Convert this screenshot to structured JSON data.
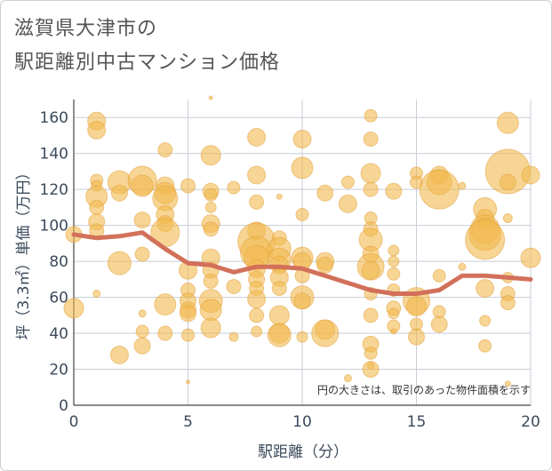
{
  "chart_data": {
    "type": "scatter",
    "title_line1": "滋賀県大津市の",
    "title_line2": "駅距離別中古マンション価格",
    "xlabel": "駅距離（分）",
    "ylabel": "坪（3.3㎡）単価（万円）",
    "xlim": [
      0,
      20
    ],
    "ylim": [
      0,
      170
    ],
    "x_ticks": [
      0,
      5,
      10,
      15,
      20
    ],
    "y_ticks": [
      0,
      20,
      40,
      60,
      80,
      100,
      120,
      140,
      160
    ],
    "grid": true,
    "annotation": "円の大きさは、取引のあった物件面積を示す",
    "colors": {
      "bubble": "#f2b94e",
      "line": "#d2705a",
      "grid": "#c8cdd8"
    },
    "trend_line": {
      "x": [
        0,
        1,
        2,
        3,
        4,
        5,
        6,
        7,
        8,
        9,
        10,
        11,
        12,
        13,
        14,
        15,
        16,
        17,
        18,
        19,
        20
      ],
      "y": [
        95,
        93,
        94,
        96,
        87,
        79,
        78,
        74,
        77,
        77,
        76,
        72,
        68,
        64,
        62,
        62,
        64,
        72,
        72,
        71,
        70
      ]
    },
    "points": [
      {
        "x": 0,
        "y": 54,
        "s": 11
      },
      {
        "x": 0,
        "y": 95,
        "s": 9
      },
      {
        "x": 1,
        "y": 158,
        "s": 10
      },
      {
        "x": 1,
        "y": 153,
        "s": 10
      },
      {
        "x": 1,
        "y": 125,
        "s": 7
      },
      {
        "x": 1,
        "y": 122,
        "s": 6
      },
      {
        "x": 1,
        "y": 116,
        "s": 12
      },
      {
        "x": 1,
        "y": 110,
        "s": 8
      },
      {
        "x": 1,
        "y": 102,
        "s": 9
      },
      {
        "x": 1,
        "y": 97,
        "s": 8
      },
      {
        "x": 1,
        "y": 62,
        "s": 4
      },
      {
        "x": 2,
        "y": 124,
        "s": 13
      },
      {
        "x": 2,
        "y": 118,
        "s": 9
      },
      {
        "x": 2,
        "y": 79,
        "s": 13
      },
      {
        "x": 2,
        "y": 28,
        "s": 10
      },
      {
        "x": 3,
        "y": 125,
        "s": 16
      },
      {
        "x": 3,
        "y": 122,
        "s": 12
      },
      {
        "x": 3,
        "y": 103,
        "s": 9
      },
      {
        "x": 3,
        "y": 84,
        "s": 8
      },
      {
        "x": 3,
        "y": 51,
        "s": 4
      },
      {
        "x": 3,
        "y": 41,
        "s": 7
      },
      {
        "x": 3,
        "y": 33,
        "s": 9
      },
      {
        "x": 4,
        "y": 142,
        "s": 8
      },
      {
        "x": 4,
        "y": 122,
        "s": 10
      },
      {
        "x": 4,
        "y": 118,
        "s": 12
      },
      {
        "x": 4,
        "y": 115,
        "s": 14
      },
      {
        "x": 4,
        "y": 106,
        "s": 10
      },
      {
        "x": 4,
        "y": 101,
        "s": 9
      },
      {
        "x": 4,
        "y": 96,
        "s": 16
      },
      {
        "x": 4,
        "y": 56,
        "s": 12
      },
      {
        "x": 4,
        "y": 40,
        "s": 8
      },
      {
        "x": 5,
        "y": 122,
        "s": 8
      },
      {
        "x": 5,
        "y": 75,
        "s": 10
      },
      {
        "x": 5,
        "y": 64,
        "s": 8
      },
      {
        "x": 5,
        "y": 58,
        "s": 9
      },
      {
        "x": 5,
        "y": 53,
        "s": 9
      },
      {
        "x": 5,
        "y": 51,
        "s": 9
      },
      {
        "x": 5,
        "y": 39,
        "s": 7
      },
      {
        "x": 5,
        "y": 13,
        "s": 2
      },
      {
        "x": 6,
        "y": 171,
        "s": 2
      },
      {
        "x": 6,
        "y": 139,
        "s": 11
      },
      {
        "x": 6,
        "y": 119,
        "s": 9
      },
      {
        "x": 6,
        "y": 117,
        "s": 7
      },
      {
        "x": 6,
        "y": 110,
        "s": 6
      },
      {
        "x": 6,
        "y": 101,
        "s": 10
      },
      {
        "x": 6,
        "y": 98,
        "s": 8
      },
      {
        "x": 6,
        "y": 82,
        "s": 10
      },
      {
        "x": 6,
        "y": 75,
        "s": 9
      },
      {
        "x": 6,
        "y": 69,
        "s": 8
      },
      {
        "x": 6,
        "y": 58,
        "s": 13
      },
      {
        "x": 6,
        "y": 53,
        "s": 12
      },
      {
        "x": 6,
        "y": 43,
        "s": 11
      },
      {
        "x": 7,
        "y": 121,
        "s": 7
      },
      {
        "x": 7,
        "y": 66,
        "s": 8
      },
      {
        "x": 7,
        "y": 38,
        "s": 5
      },
      {
        "x": 8,
        "y": 149,
        "s": 10
      },
      {
        "x": 8,
        "y": 128,
        "s": 10
      },
      {
        "x": 8,
        "y": 113,
        "s": 8
      },
      {
        "x": 8,
        "y": 97,
        "s": 10
      },
      {
        "x": 8,
        "y": 91,
        "s": 21
      },
      {
        "x": 8,
        "y": 85,
        "s": 18
      },
      {
        "x": 8,
        "y": 82,
        "s": 14
      },
      {
        "x": 8,
        "y": 76,
        "s": 10
      },
      {
        "x": 8,
        "y": 70,
        "s": 9
      },
      {
        "x": 8,
        "y": 65,
        "s": 8
      },
      {
        "x": 8,
        "y": 59,
        "s": 10
      },
      {
        "x": 8,
        "y": 50,
        "s": 8
      },
      {
        "x": 8,
        "y": 41,
        "s": 6
      },
      {
        "x": 9,
        "y": 116,
        "s": 3
      },
      {
        "x": 9,
        "y": 93,
        "s": 8
      },
      {
        "x": 9,
        "y": 87,
        "s": 13
      },
      {
        "x": 9,
        "y": 81,
        "s": 13
      },
      {
        "x": 9,
        "y": 78,
        "s": 10
      },
      {
        "x": 9,
        "y": 71,
        "s": 10
      },
      {
        "x": 9,
        "y": 65,
        "s": 8
      },
      {
        "x": 9,
        "y": 50,
        "s": 11
      },
      {
        "x": 9,
        "y": 40,
        "s": 11
      },
      {
        "x": 9,
        "y": 39,
        "s": 13
      },
      {
        "x": 10,
        "y": 148,
        "s": 10
      },
      {
        "x": 10,
        "y": 132,
        "s": 12
      },
      {
        "x": 10,
        "y": 106,
        "s": 7
      },
      {
        "x": 10,
        "y": 82,
        "s": 12
      },
      {
        "x": 10,
        "y": 80,
        "s": 10
      },
      {
        "x": 10,
        "y": 72,
        "s": 8
      },
      {
        "x": 10,
        "y": 60,
        "s": 13
      },
      {
        "x": 10,
        "y": 58,
        "s": 9
      },
      {
        "x": 10,
        "y": 38,
        "s": 6
      },
      {
        "x": 11,
        "y": 118,
        "s": 9
      },
      {
        "x": 11,
        "y": 80,
        "s": 10
      },
      {
        "x": 11,
        "y": 78,
        "s": 9
      },
      {
        "x": 11,
        "y": 42,
        "s": 11
      },
      {
        "x": 11,
        "y": 40,
        "s": 15
      },
      {
        "x": 12,
        "y": 124,
        "s": 7
      },
      {
        "x": 12,
        "y": 112,
        "s": 10
      },
      {
        "x": 12,
        "y": 15,
        "s": 4
      },
      {
        "x": 13,
        "y": 161,
        "s": 7
      },
      {
        "x": 13,
        "y": 148,
        "s": 8
      },
      {
        "x": 13,
        "y": 129,
        "s": 11
      },
      {
        "x": 13,
        "y": 120,
        "s": 8
      },
      {
        "x": 13,
        "y": 104,
        "s": 7
      },
      {
        "x": 13,
        "y": 98,
        "s": 8
      },
      {
        "x": 13,
        "y": 92,
        "s": 13
      },
      {
        "x": 13,
        "y": 84,
        "s": 9
      },
      {
        "x": 13,
        "y": 77,
        "s": 15
      },
      {
        "x": 13,
        "y": 75,
        "s": 10
      },
      {
        "x": 13,
        "y": 62,
        "s": 7
      },
      {
        "x": 13,
        "y": 50,
        "s": 8
      },
      {
        "x": 13,
        "y": 34,
        "s": 9
      },
      {
        "x": 13,
        "y": 29,
        "s": 7
      },
      {
        "x": 13,
        "y": 22,
        "s": 4
      },
      {
        "x": 13,
        "y": 20,
        "s": 9
      },
      {
        "x": 14,
        "y": 119,
        "s": 9
      },
      {
        "x": 14,
        "y": 86,
        "s": 6
      },
      {
        "x": 14,
        "y": 80,
        "s": 6
      },
      {
        "x": 14,
        "y": 73,
        "s": 7
      },
      {
        "x": 14,
        "y": 64,
        "s": 7
      },
      {
        "x": 14,
        "y": 54,
        "s": 8
      },
      {
        "x": 14,
        "y": 51,
        "s": 6
      },
      {
        "x": 14,
        "y": 44,
        "s": 7
      },
      {
        "x": 14,
        "y": 41,
        "s": 3
      },
      {
        "x": 15,
        "y": 129,
        "s": 7
      },
      {
        "x": 15,
        "y": 124,
        "s": 7
      },
      {
        "x": 15,
        "y": 58,
        "s": 15
      },
      {
        "x": 15,
        "y": 55,
        "s": 11
      },
      {
        "x": 15,
        "y": 45,
        "s": 7
      },
      {
        "x": 15,
        "y": 38,
        "s": 9
      },
      {
        "x": 16,
        "y": 128,
        "s": 10
      },
      {
        "x": 16,
        "y": 124,
        "s": 14
      },
      {
        "x": 16,
        "y": 120,
        "s": 22
      },
      {
        "x": 16,
        "y": 72,
        "s": 7
      },
      {
        "x": 16,
        "y": 52,
        "s": 7
      },
      {
        "x": 16,
        "y": 45,
        "s": 9
      },
      {
        "x": 17,
        "y": 122,
        "s": 4
      },
      {
        "x": 17,
        "y": 77,
        "s": 4
      },
      {
        "x": 18,
        "y": 109,
        "s": 13
      },
      {
        "x": 18,
        "y": 104,
        "s": 10
      },
      {
        "x": 18,
        "y": 98,
        "s": 16
      },
      {
        "x": 18,
        "y": 95,
        "s": 18
      },
      {
        "x": 18,
        "y": 92,
        "s": 22
      },
      {
        "x": 18,
        "y": 65,
        "s": 10
      },
      {
        "x": 18,
        "y": 47,
        "s": 6
      },
      {
        "x": 18,
        "y": 33,
        "s": 7
      },
      {
        "x": 19,
        "y": 157,
        "s": 12
      },
      {
        "x": 19,
        "y": 130,
        "s": 25
      },
      {
        "x": 19,
        "y": 124,
        "s": 9
      },
      {
        "x": 19,
        "y": 104,
        "s": 5
      },
      {
        "x": 19,
        "y": 71,
        "s": 6
      },
      {
        "x": 19,
        "y": 62,
        "s": 8
      },
      {
        "x": 19,
        "y": 57,
        "s": 8
      },
      {
        "x": 19,
        "y": 12,
        "s": 3
      },
      {
        "x": 20,
        "y": 128,
        "s": 10
      },
      {
        "x": 20,
        "y": 82,
        "s": 11
      }
    ]
  }
}
